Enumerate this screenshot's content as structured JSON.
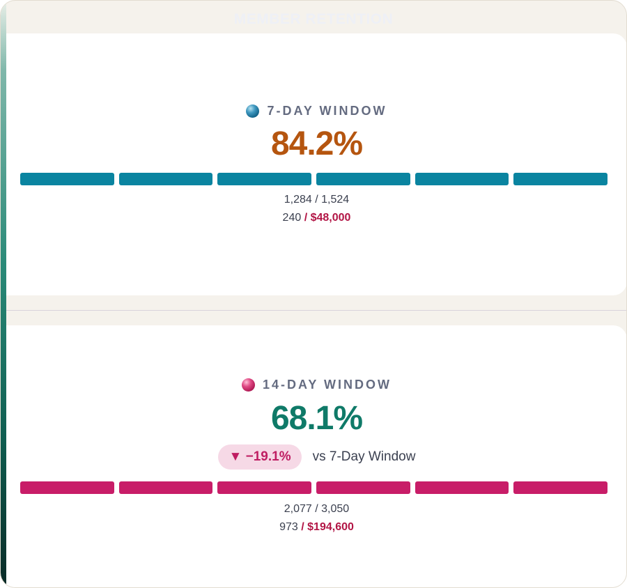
{
  "page": {
    "title": "MEMBER RETENTION"
  },
  "cards": [
    {
      "label": "7-DAY WINDOW",
      "dot_icon": "teal-sphere-icon",
      "value": "84.2%",
      "value_color": "#b5550f",
      "bar_color": "#0a84a0",
      "bar_segments": 6,
      "counts": "1,284 / 1,524",
      "secondary_count": "240",
      "money": "/ $48,000"
    },
    {
      "label": "14-DAY WINDOW",
      "dot_icon": "pink-sphere-icon",
      "value": "68.1%",
      "value_color": "#0f7a68",
      "bar_color": "#c81d68",
      "bar_segments": 6,
      "delta": "▼ −19.1%",
      "delta_compare": "vs 7-Day Window",
      "counts": "2,077 / 3,050",
      "secondary_count": "973",
      "money": "/ $194,600"
    }
  ]
}
